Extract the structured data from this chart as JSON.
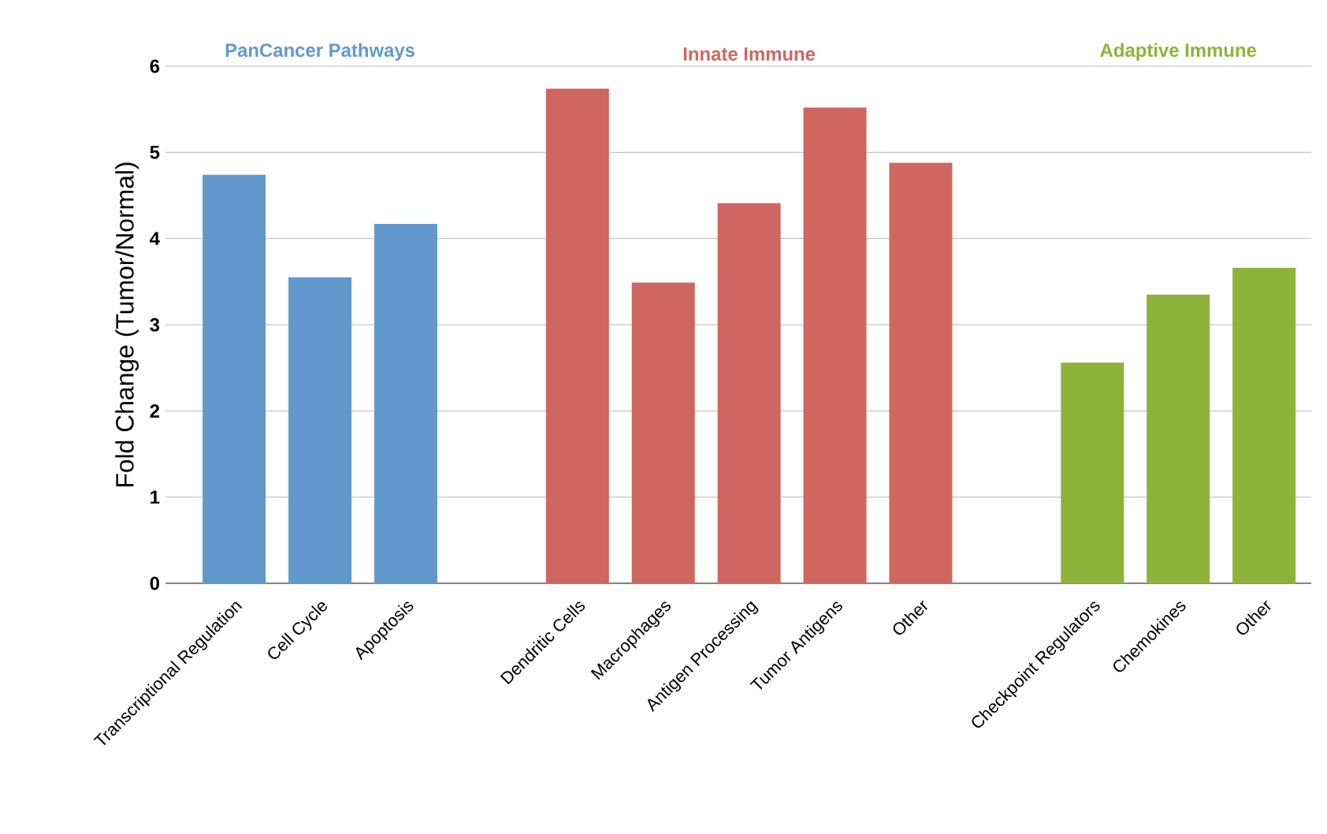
{
  "chart_data": {
    "type": "bar",
    "ylabel": "Fold Change (Tumor/Normal)",
    "categories": [
      "Transcriptional Regulation",
      "Cell Cycle",
      "Apoptosis",
      null,
      "Dendritic Cells",
      "Macrophages",
      "Antigen Processing",
      "Tumor Antigens",
      "Other",
      null,
      "Checkpoint Regulators",
      "Chemokines",
      "Other"
    ],
    "series": [
      {
        "name": "PanCancer Pathways",
        "color": "#6199cc",
        "values": [
          4.74,
          3.55,
          4.17,
          null,
          null,
          null,
          null,
          null,
          null,
          null,
          null,
          null,
          null
        ]
      },
      {
        "name": "Innate Immune",
        "color": "#cf6660",
        "values": [
          null,
          null,
          null,
          null,
          5.74,
          3.49,
          4.41,
          5.52,
          4.88,
          null,
          null,
          null,
          null
        ]
      },
      {
        "name": "Adaptive Immune",
        "color": "#8db33a",
        "values": [
          null,
          null,
          null,
          null,
          null,
          null,
          null,
          null,
          null,
          null,
          2.56,
          3.35,
          3.66
        ]
      }
    ],
    "ylim": [
      0,
      6
    ],
    "yticks": [
      0,
      1,
      2,
      3,
      4,
      5,
      6
    ],
    "grid": "y"
  }
}
